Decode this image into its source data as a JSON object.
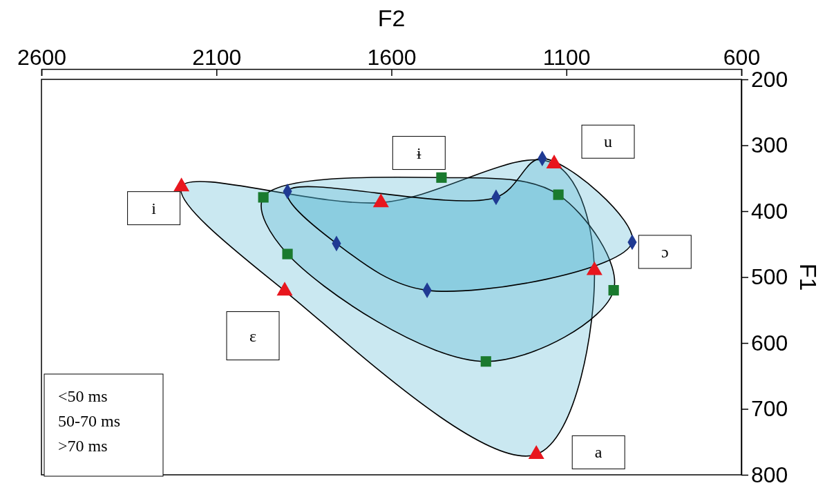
{
  "chart_data": {
    "type": "scatter",
    "xlabel": "F2",
    "ylabel": "F1",
    "xlim": [
      2600,
      600
    ],
    "xticks": [
      2600,
      2100,
      1600,
      1100,
      600
    ],
    "ylim": [
      800,
      200
    ],
    "yticks": [
      200,
      300,
      400,
      500,
      600,
      700,
      800
    ],
    "line_style": "solid",
    "series": [
      {
        "color": "#e8161e",
        "marker": "triangle",
        "x": [
          2200,
          1630,
          1135,
          1020,
          1186,
          1905
        ],
        "values": [
          363,
          387,
          328,
          490,
          769,
          521
        ]
      },
      {
        "color": "#1a7a2e",
        "marker": "square",
        "x": [
          1966,
          1457,
          1123,
          965,
          1330,
          1897
        ],
        "values": [
          379,
          349,
          375,
          520,
          628,
          465
        ]
      },
      {
        "color": "#1f3a93",
        "marker": "diamond",
        "x": [
          1897,
          1301,
          1169,
          912,
          1498,
          1757
        ],
        "values": [
          370,
          379,
          320,
          447,
          520,
          449
        ]
      }
    ],
    "annotations": [
      "i",
      "ɨ",
      "u",
      "ɔ",
      "a",
      "ɛ",
      "<50 ms",
      "50-70 ms",
      ">70 ms"
    ]
  }
}
